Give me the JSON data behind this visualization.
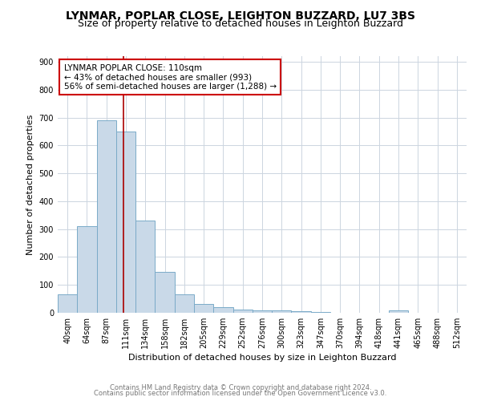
{
  "title": "LYNMAR, POPLAR CLOSE, LEIGHTON BUZZARD, LU7 3BS",
  "subtitle": "Size of property relative to detached houses in Leighton Buzzard",
  "xlabel": "Distribution of detached houses by size in Leighton Buzzard",
  "ylabel": "Number of detached properties",
  "bar_labels": [
    "40sqm",
    "64sqm",
    "87sqm",
    "111sqm",
    "134sqm",
    "158sqm",
    "182sqm",
    "205sqm",
    "229sqm",
    "252sqm",
    "276sqm",
    "300sqm",
    "323sqm",
    "347sqm",
    "370sqm",
    "394sqm",
    "418sqm",
    "441sqm",
    "465sqm",
    "488sqm",
    "512sqm"
  ],
  "bar_values": [
    65,
    310,
    690,
    650,
    330,
    148,
    65,
    33,
    20,
    12,
    10,
    8,
    5,
    3,
    0,
    0,
    0,
    8,
    0,
    0,
    0
  ],
  "bar_color": "#c9d9e8",
  "bar_edge_color": "#7aaac8",
  "red_line_index": 2.87,
  "annotation_line1": "LYNMAR POPLAR CLOSE: 110sqm",
  "annotation_line2": "← 43% of detached houses are smaller (993)",
  "annotation_line3": "56% of semi-detached houses are larger (1,288) →",
  "annotation_box_color": "white",
  "annotation_border_color": "#cc0000",
  "red_line_color": "#aa0000",
  "ylim": [
    0,
    920
  ],
  "yticks": [
    0,
    100,
    200,
    300,
    400,
    500,
    600,
    700,
    800,
    900
  ],
  "grid_color": "#ccd5e0",
  "footer_line1": "Contains HM Land Registry data © Crown copyright and database right 2024.",
  "footer_line2": "Contains public sector information licensed under the Open Government Licence v3.0.",
  "title_fontsize": 10,
  "subtitle_fontsize": 9,
  "xlabel_fontsize": 8,
  "ylabel_fontsize": 8,
  "tick_fontsize": 7,
  "footer_fontsize": 6,
  "annotation_fontsize": 7.5
}
